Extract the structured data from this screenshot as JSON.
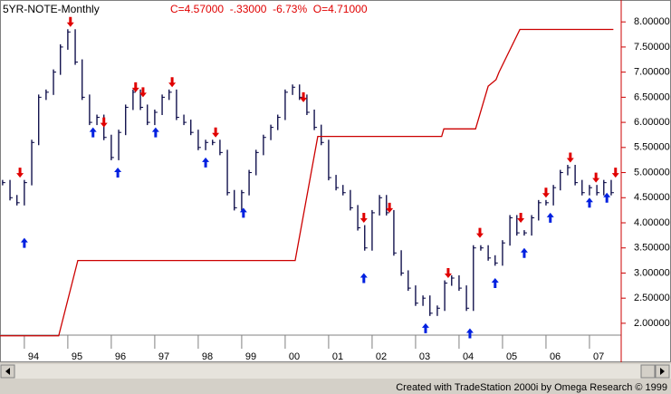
{
  "chart_data": {
    "type": "price",
    "title": "5YR-NOTE-Monthly",
    "quote": "C=4.57000  -.33000  -6.73%  O=4.71000",
    "credit": "Created with TradeStation 2000i by Omega Research © 1999",
    "xlim": [
      1993.44,
      2007.73
    ],
    "ylim": [
      1.8,
      8.4
    ],
    "xticks": [
      {
        "value": 1994,
        "label": "94"
      },
      {
        "value": 1995,
        "label": "95"
      },
      {
        "value": 1996,
        "label": "96"
      },
      {
        "value": 1997,
        "label": "97"
      },
      {
        "value": 1998,
        "label": "98"
      },
      {
        "value": 1999,
        "label": "99"
      },
      {
        "value": 2000,
        "label": "00"
      },
      {
        "value": 2001,
        "label": "01"
      },
      {
        "value": 2002,
        "label": "02"
      },
      {
        "value": 2003,
        "label": "03"
      },
      {
        "value": 2004,
        "label": "04"
      },
      {
        "value": 2005,
        "label": "05"
      },
      {
        "value": 2006,
        "label": "06"
      },
      {
        "value": 2007,
        "label": "07"
      }
    ],
    "yticks": [
      {
        "value": 2,
        "label": "2.00000"
      },
      {
        "value": 2.5,
        "label": "2.50000"
      },
      {
        "value": 3,
        "label": "3.00000"
      },
      {
        "value": 3.5,
        "label": "3.50000"
      },
      {
        "value": 4,
        "label": "4.00000"
      },
      {
        "value": 4.5,
        "label": "4.50000"
      },
      {
        "value": 5,
        "label": "5.00000"
      },
      {
        "value": 5.5,
        "label": "5.50000"
      },
      {
        "value": 6,
        "label": "6.00000"
      },
      {
        "value": 6.5,
        "label": "6.50000"
      },
      {
        "value": 7,
        "label": "7.00000"
      },
      {
        "value": 7.5,
        "label": "7.50000"
      },
      {
        "value": 8,
        "label": "8.00000"
      }
    ],
    "price": {
      "color": "#000040",
      "x": [
        1993.5,
        1993.67,
        1993.83,
        1994,
        1994.17,
        1994.33,
        1994.5,
        1994.67,
        1994.83,
        1995,
        1995.17,
        1995.33,
        1995.5,
        1995.67,
        1995.83,
        1996,
        1996.17,
        1996.33,
        1996.5,
        1996.67,
        1996.83,
        1997,
        1997.17,
        1997.33,
        1997.5,
        1997.67,
        1997.83,
        1998,
        1998.17,
        1998.33,
        1998.5,
        1998.67,
        1998.83,
        1999,
        1999.17,
        1999.33,
        1999.5,
        1999.67,
        1999.83,
        2000,
        2000.17,
        2000.33,
        2000.5,
        2000.67,
        2000.83,
        2001,
        2001.17,
        2001.33,
        2001.5,
        2001.67,
        2001.83,
        2002,
        2002.17,
        2002.33,
        2002.5,
        2002.67,
        2002.83,
        2003,
        2003.17,
        2003.33,
        2003.5,
        2003.67,
        2003.83,
        2004,
        2004.17,
        2004.33,
        2004.5,
        2004.67,
        2004.83,
        2005,
        2005.17,
        2005.33,
        2005.5,
        2005.67,
        2005.83,
        2006,
        2006.17,
        2006.33,
        2006.5,
        2006.67,
        2006.83,
        2007,
        2007.17,
        2007.33,
        2007.5
      ],
      "values": [
        4.8,
        4.5,
        4.4,
        4.8,
        5.6,
        6.5,
        6.6,
        7.0,
        7.5,
        7.8,
        7.2,
        6.5,
        6.0,
        6.1,
        5.7,
        5.3,
        5.8,
        6.3,
        6.6,
        6.3,
        6.0,
        6.2,
        6.5,
        6.6,
        6.1,
        6.0,
        5.8,
        5.5,
        5.6,
        5.6,
        5.4,
        4.6,
        4.3,
        4.6,
        5.0,
        5.4,
        5.7,
        5.9,
        6.1,
        6.6,
        6.7,
        6.5,
        6.2,
        5.9,
        5.6,
        4.9,
        4.7,
        4.6,
        4.3,
        3.9,
        3.5,
        4.2,
        4.5,
        4.2,
        3.4,
        3.0,
        2.7,
        2.4,
        2.5,
        2.2,
        2.3,
        2.8,
        2.9,
        2.7,
        2.3,
        3.5,
        3.5,
        3.3,
        3.2,
        3.6,
        4.1,
        3.8,
        3.8,
        4.1,
        4.4,
        4.4,
        4.7,
        5.0,
        5.1,
        4.8,
        4.6,
        4.7,
        4.6,
        4.8,
        4.6
      ]
    },
    "stop": {
      "color": "#cc0000",
      "x": [
        1993.44,
        1994.79,
        1995.23,
        2000.23,
        2000.75,
        2003.6,
        2003.65,
        2004.38,
        2004.67,
        2004.85,
        2004.92,
        2005.4,
        2007.55
      ],
      "values": [
        1.75,
        1.75,
        3.25,
        3.25,
        5.72,
        5.72,
        5.87,
        5.87,
        6.72,
        6.85,
        7.0,
        7.85,
        7.85
      ]
    },
    "sell_signals": {
      "color": "#e00000",
      "x": [
        1993.9,
        1995.06,
        1995.83,
        1996.56,
        1996.73,
        1997.4,
        1998.4,
        2000.42,
        2001.81,
        2002.4,
        2003.75,
        2004.48,
        2005.42,
        2006.0,
        2006.56,
        2007.15,
        2007.6
      ],
      "values": [
        4.9,
        7.9,
        5.9,
        6.6,
        6.5,
        6.7,
        5.7,
        6.4,
        4.0,
        4.2,
        2.9,
        3.7,
        4.0,
        4.5,
        5.2,
        4.8,
        4.9
      ]
    },
    "buy_signals": {
      "color": "#0020e0",
      "x": [
        1994.0,
        1995.58,
        1996.15,
        1997.02,
        1998.17,
        1999.04,
        2001.81,
        2003.23,
        2004.25,
        2004.83,
        2005.5,
        2006.1,
        2007.0,
        2007.4
      ],
      "values": [
        3.7,
        5.9,
        5.1,
        5.9,
        5.3,
        4.3,
        3.0,
        2.0,
        1.9,
        2.9,
        3.5,
        4.2,
        4.5,
        4.6
      ]
    }
  }
}
